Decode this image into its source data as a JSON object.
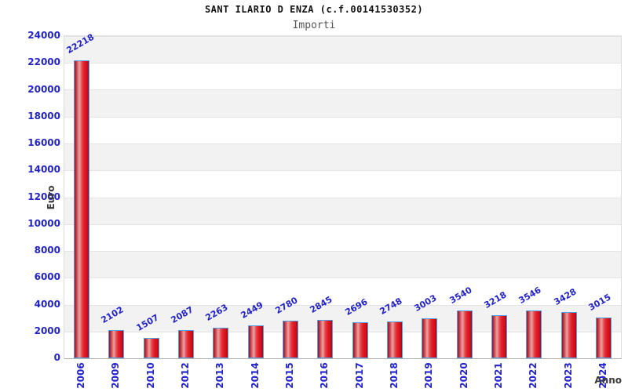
{
  "chart_data": {
    "type": "bar",
    "title": "SANT ILARIO D ENZA (c.f.00141530352)",
    "subtitle": "Importi",
    "xlabel": "Anno",
    "ylabel": "Euro",
    "categories": [
      "2006",
      "2009",
      "2010",
      "2012",
      "2013",
      "2014",
      "2015",
      "2016",
      "2017",
      "2018",
      "2019",
      "2020",
      "2021",
      "2022",
      "2023",
      "2024"
    ],
    "values": [
      22218,
      2102,
      1507,
      2087,
      2263,
      2449,
      2780,
      2845,
      2696,
      2748,
      3003,
      3540,
      3218,
      3546,
      3428,
      3015
    ],
    "ylim": [
      0,
      24000
    ],
    "ytick_step": 2000,
    "grid": "horizontal-bands",
    "legend": "none",
    "colors": {
      "accent_blue": "#2323cc",
      "bar_fill": "#e01b24",
      "bar_border": "#4da3e8",
      "band_gray": "#f2f2f2",
      "band_white": "#ffffff",
      "axis_line": "#b0b0b0",
      "title_color": "#111111",
      "subtitle_color": "#555555",
      "axis_title_color": "#3a3a3a"
    }
  }
}
